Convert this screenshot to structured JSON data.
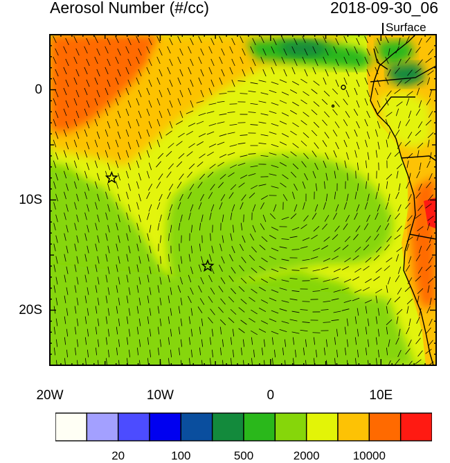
{
  "header": {
    "title": "Aerosol Number (#/cc)",
    "datetime": "2018-09-30_06",
    "level": "Surface"
  },
  "map": {
    "lon_range": [
      -20,
      15
    ],
    "lat_range": [
      -25,
      5
    ],
    "x_tick_labels": [
      "20W",
      "10W",
      "0",
      "10E"
    ],
    "y_tick_labels": [
      "0",
      "10S",
      "20S"
    ],
    "markers": [
      {
        "symbol": "star",
        "lon": -14.4,
        "lat": -8.0
      },
      {
        "symbol": "star",
        "lon": -5.7,
        "lat": -16.0
      }
    ],
    "overlay": "wind vectors"
  },
  "colorbar": {
    "colors": [
      "#fffff5",
      "#a3a0ff",
      "#4c4cff",
      "#0000f0",
      "#0a4e9e",
      "#138a3c",
      "#2ab81b",
      "#86d60a",
      "#e3f407",
      "#fdc205",
      "#ff6a00",
      "#ff1a12"
    ],
    "labels": [
      "20",
      "100",
      "500",
      "2000",
      "10000"
    ]
  }
}
